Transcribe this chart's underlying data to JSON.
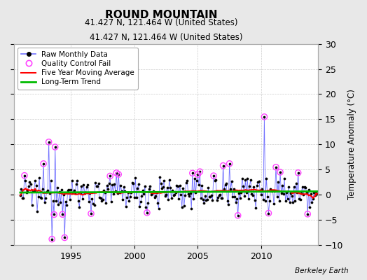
{
  "title": "ROUND MOUNTAIN",
  "subtitle": "41.427 N, 121.464 W (United States)",
  "credit": "Berkeley Earth",
  "ylabel": "Temperature Anomaly (°C)",
  "xlim": [
    1990.5,
    2014.5
  ],
  "ylim": [
    -10,
    30
  ],
  "yticks": [
    -10,
    -5,
    0,
    5,
    10,
    15,
    20,
    25,
    30
  ],
  "xticks": [
    1995,
    2000,
    2005,
    2010
  ],
  "background_color": "#e8e8e8",
  "plot_bg": "#ffffff",
  "raw_line_color": "#7070ff",
  "raw_marker_color": "#000000",
  "moving_avg_color": "#ff0000",
  "trend_color": "#00bb00",
  "qc_fail_color": "#ff44ff",
  "figsize": [
    5.24,
    4.0
  ],
  "dpi": 100
}
